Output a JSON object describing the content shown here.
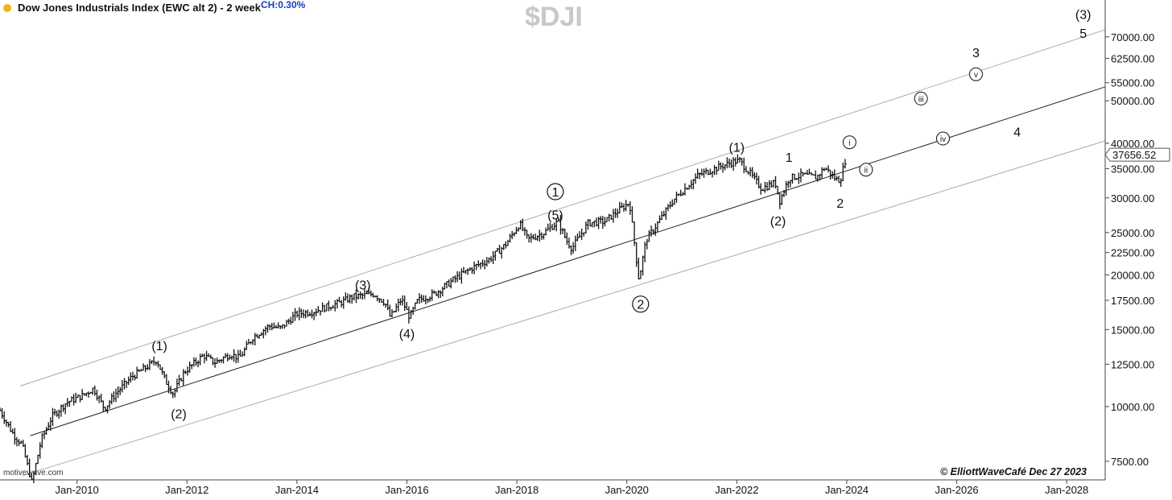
{
  "header": {
    "title": "Dow Jones Industrials Index (EWC alt 2) - 2 week",
    "change": "CH:0.30%",
    "symbol": "$DJI",
    "watermark": "motivewave.com",
    "copyright": "© ElliottWaveCafé Dec 27 2023"
  },
  "colors": {
    "bars": "#111111",
    "channel_mid": "#222222",
    "channel_outer": "#9a9a9a",
    "status_dot": "#f2b41b",
    "change_text": "#1a3db8",
    "symbol_text": "#c8c8c8"
  },
  "chart_data": {
    "type": "ohlc",
    "scale": "log",
    "ylim": [
      6800,
      85000
    ],
    "xlim": [
      2008.6,
      2028.7
    ],
    "ylabel": "",
    "xlabel": "",
    "y_ticks": [
      "7500.00",
      "10000.00",
      "12500.00",
      "15000.00",
      "17500.00",
      "20000.00",
      "22500.00",
      "25000.00",
      "30000.00",
      "35000.00",
      "40000.00",
      "50000.00",
      "55000.00",
      "62500.00",
      "70000.00"
    ],
    "x_ticks": [
      {
        "t": 2010,
        "label": "Jan-2010"
      },
      {
        "t": 2012,
        "label": "Jan-2012"
      },
      {
        "t": 2014,
        "label": "Jan-2014"
      },
      {
        "t": 2016,
        "label": "Jan-2016"
      },
      {
        "t": 2018,
        "label": "Jan-2018"
      },
      {
        "t": 2020,
        "label": "Jan-2020"
      },
      {
        "t": 2022,
        "label": "Jan-2022"
      },
      {
        "t": 2024,
        "label": "Jan-2024"
      },
      {
        "t": 2026,
        "label": "Jan-2026"
      },
      {
        "t": 2028,
        "label": "Jan-2028"
      }
    ],
    "last_price": "37656.52",
    "last_value": 37656.52,
    "price_path": [
      [
        2008.6,
        9800
      ],
      [
        2008.85,
        8600
      ],
      [
        2009.0,
        8200
      ],
      [
        2009.18,
        6700
      ],
      [
        2009.35,
        8400
      ],
      [
        2009.55,
        9500
      ],
      [
        2009.8,
        10200
      ],
      [
        2010.1,
        10600
      ],
      [
        2010.3,
        11000
      ],
      [
        2010.5,
        9900
      ],
      [
        2010.7,
        10700
      ],
      [
        2011.0,
        11700
      ],
      [
        2011.3,
        12400
      ],
      [
        2011.45,
        12800
      ],
      [
        2011.6,
        11500
      ],
      [
        2011.75,
        10700
      ],
      [
        2011.95,
        12000
      ],
      [
        2012.3,
        13100
      ],
      [
        2012.5,
        12600
      ],
      [
        2012.8,
        13200
      ],
      [
        2012.95,
        12900
      ],
      [
        2013.2,
        14400
      ],
      [
        2013.5,
        15300
      ],
      [
        2013.7,
        15100
      ],
      [
        2014.0,
        16300
      ],
      [
        2014.3,
        16500
      ],
      [
        2014.6,
        17000
      ],
      [
        2014.8,
        17300
      ],
      [
        2015.0,
        17800
      ],
      [
        2015.4,
        18100
      ],
      [
        2015.6,
        17300
      ],
      [
        2015.7,
        16000
      ],
      [
        2015.9,
        17600
      ],
      [
        2016.05,
        16000
      ],
      [
        2016.2,
        17500
      ],
      [
        2016.5,
        18100
      ],
      [
        2016.9,
        19700
      ],
      [
        2017.2,
        20800
      ],
      [
        2017.5,
        21700
      ],
      [
        2017.8,
        23500
      ],
      [
        2018.05,
        26200
      ],
      [
        2018.2,
        24100
      ],
      [
        2018.5,
        25000
      ],
      [
        2018.75,
        26500
      ],
      [
        2018.9,
        24000
      ],
      [
        2019.0,
        23000
      ],
      [
        2019.3,
        26300
      ],
      [
        2019.6,
        26500
      ],
      [
        2019.9,
        28400
      ],
      [
        2020.05,
        29300
      ],
      [
        2020.15,
        23000
      ],
      [
        2020.22,
        19500
      ],
      [
        2020.35,
        24000
      ],
      [
        2020.6,
        26700
      ],
      [
        2020.85,
        29700
      ],
      [
        2021.0,
        31000
      ],
      [
        2021.3,
        33800
      ],
      [
        2021.6,
        35000
      ],
      [
        2021.95,
        36300
      ],
      [
        2022.05,
        36500
      ],
      [
        2022.25,
        34000
      ],
      [
        2022.45,
        31500
      ],
      [
        2022.7,
        32500
      ],
      [
        2022.78,
        29500
      ],
      [
        2022.95,
        33300
      ],
      [
        2023.2,
        33800
      ],
      [
        2023.45,
        33400
      ],
      [
        2023.6,
        35200
      ],
      [
        2023.8,
        33100
      ],
      [
        2023.88,
        32900
      ],
      [
        2024.0,
        37700
      ]
    ],
    "channels": [
      {
        "name": "",
        "role": "upper",
        "points": [
          [
            2008.97,
            11150
          ],
          [
            2028.7,
            72700
          ]
        ]
      },
      {
        "name": "",
        "role": "middle",
        "points": [
          [
            2009.15,
            8580
          ],
          [
            2028.7,
            53800
          ]
        ]
      },
      {
        "name": "",
        "role": "lower",
        "points": [
          [
            2009.0,
            6950
          ],
          [
            2028.7,
            40500
          ]
        ]
      }
    ],
    "annotations": [
      {
        "text": "(1)",
        "x": 2011.5,
        "y": 13800,
        "style": "paren"
      },
      {
        "text": "(2)",
        "x": 2011.85,
        "y": 9650,
        "style": "paren"
      },
      {
        "text": "(3)",
        "x": 2015.2,
        "y": 19000,
        "style": "paren"
      },
      {
        "text": "(4)",
        "x": 2016.0,
        "y": 14700,
        "style": "paren"
      },
      {
        "text": "1",
        "x": 2018.7,
        "y": 31000,
        "style": "circle"
      },
      {
        "text": "(5)",
        "x": 2018.7,
        "y": 27500,
        "style": "paren"
      },
      {
        "text": "2",
        "x": 2020.25,
        "y": 17150,
        "style": "circle"
      },
      {
        "text": "(1)",
        "x": 2022.0,
        "y": 39200,
        "style": "paren"
      },
      {
        "text": "(2)",
        "x": 2022.75,
        "y": 26600,
        "style": "paren"
      },
      {
        "text": "1",
        "x": 2022.95,
        "y": 37200,
        "style": "plain"
      },
      {
        "text": "2",
        "x": 2023.88,
        "y": 29200,
        "style": "plain"
      },
      {
        "text": "i",
        "x": 2024.05,
        "y": 40200,
        "style": "roman"
      },
      {
        "text": "ii",
        "x": 2024.35,
        "y": 34800,
        "style": "roman"
      },
      {
        "text": "iii",
        "x": 2025.35,
        "y": 50600,
        "style": "roman"
      },
      {
        "text": "iv",
        "x": 2025.75,
        "y": 41000,
        "style": "roman"
      },
      {
        "text": "v",
        "x": 2026.35,
        "y": 57500,
        "style": "roman"
      },
      {
        "text": "3",
        "x": 2026.35,
        "y": 64500,
        "style": "plain"
      },
      {
        "text": "4",
        "x": 2027.1,
        "y": 42500,
        "style": "plain"
      },
      {
        "text": "(3)",
        "x": 2028.3,
        "y": 79000,
        "style": "paren"
      },
      {
        "text": "5",
        "x": 2028.3,
        "y": 71500,
        "style": "plain"
      }
    ]
  }
}
